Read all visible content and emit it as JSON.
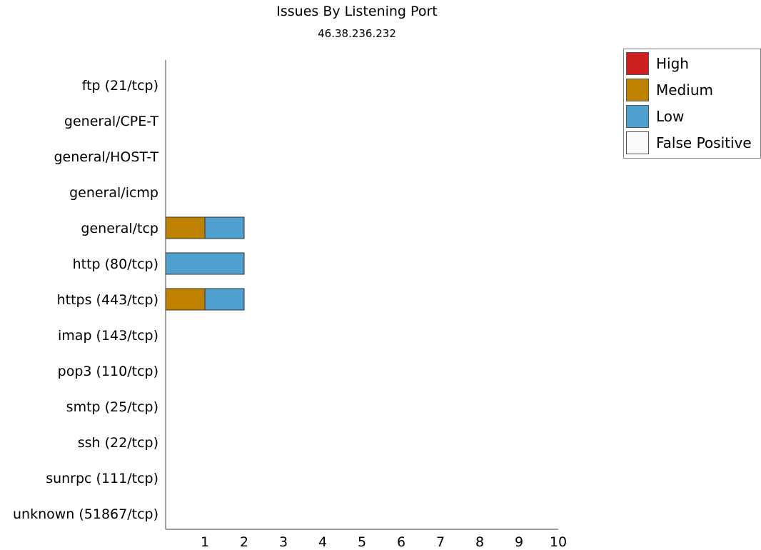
{
  "chart_data": {
    "type": "bar",
    "orientation": "horizontal",
    "stacked": true,
    "title": "Issues By Listening Port",
    "subtitle": "46.38.236.232",
    "categories": [
      "ftp (21/tcp)",
      "general/CPE-T",
      "general/HOST-T",
      "general/icmp",
      "general/tcp",
      "http (80/tcp)",
      "https (443/tcp)",
      "imap (143/tcp)",
      "pop3 (110/tcp)",
      "smtp (25/tcp)",
      "ssh (22/tcp)",
      "sunrpc (111/tcp)",
      "unknown (51867/tcp)"
    ],
    "series": [
      {
        "name": "High",
        "color": "#cc1f1f",
        "values": [
          0,
          0,
          0,
          0,
          0,
          0,
          0,
          0,
          0,
          0,
          0,
          0,
          0
        ]
      },
      {
        "name": "Medium",
        "color": "#bf8200",
        "values": [
          0,
          0,
          0,
          0,
          1,
          0,
          1,
          0,
          0,
          0,
          0,
          0,
          0
        ]
      },
      {
        "name": "Low",
        "color": "#4f9fcf",
        "values": [
          0,
          0,
          0,
          0,
          1,
          2,
          1,
          0,
          0,
          0,
          0,
          0,
          0
        ]
      },
      {
        "name": "False Positive",
        "color": "#fafafa",
        "values": [
          0,
          0,
          0,
          0,
          0,
          0,
          0,
          0,
          0,
          0,
          0,
          0,
          0
        ]
      }
    ],
    "xlim": [
      0,
      10
    ],
    "xticks": [
      "1",
      "2",
      "3",
      "4",
      "5",
      "6",
      "7",
      "8",
      "9",
      "10"
    ],
    "grid": false,
    "legend_position": "top-right"
  }
}
